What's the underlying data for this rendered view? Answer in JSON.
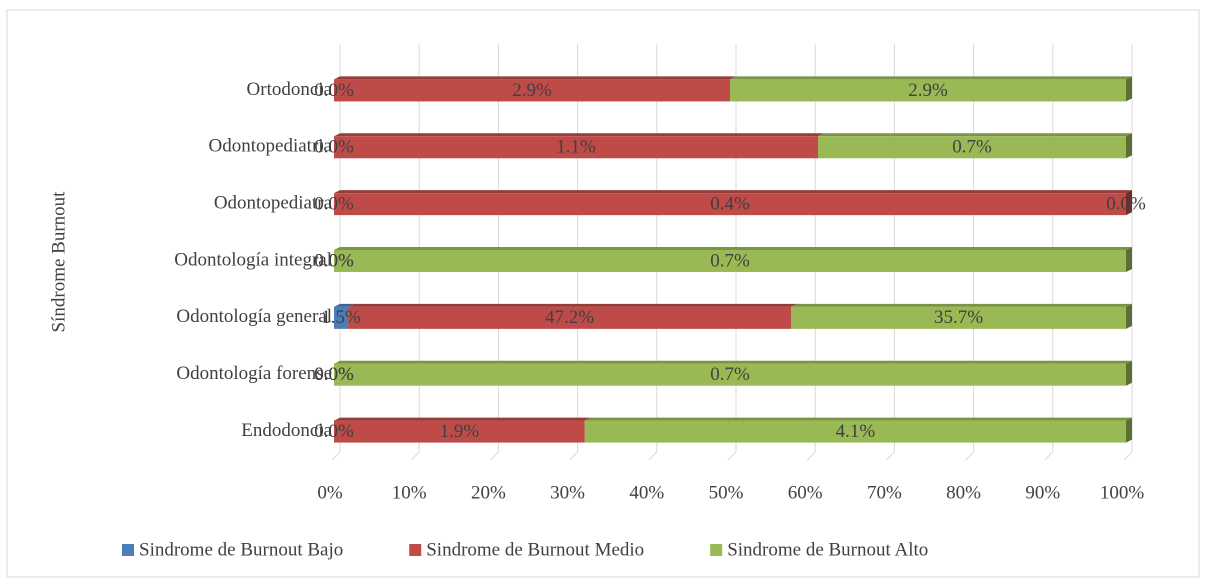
{
  "chart_data": {
    "type": "bar",
    "orientation": "horizontal",
    "stacking": "percent",
    "y_axis_label": "Síndrome Burnout",
    "categories": [
      "Endodoncia",
      "Odontología forense",
      "Odontología general",
      "Odontología integral",
      "Odontopediatra",
      "Odontopediatria",
      "Ortodoncia"
    ],
    "series": [
      {
        "name": "Sindrome de Burnout Bajo",
        "color": "#4a7ebb",
        "values": [
          0,
          0,
          1.5,
          0,
          0,
          0,
          0
        ],
        "value_labels": [
          "0.0%",
          "0.0%",
          "1.5%",
          "0.0%",
          "0.0%",
          "0.0%",
          "0.0%"
        ]
      },
      {
        "name": "Sindrome de Burnout Medio",
        "color": "#be4b48",
        "values": [
          1.9,
          0,
          47.2,
          0,
          0.4,
          1.1,
          2.9
        ],
        "value_labels": [
          "1.9%",
          "0.0%",
          "47.2%",
          "0.0%",
          "0.4%",
          "1.1%",
          "2.9%"
        ]
      },
      {
        "name": "Sindrome de Burnout Alto",
        "color": "#98b954",
        "values": [
          4.1,
          0.7,
          35.7,
          0.7,
          0,
          0.7,
          2.9
        ],
        "value_labels": [
          "4.1%",
          "0.7%",
          "35.7%",
          "0.7%",
          "0.0%",
          "0.7%",
          "2.9%"
        ]
      }
    ],
    "xlim": [
      0,
      100
    ],
    "xticks": [
      {
        "value": 0,
        "label": "0%"
      },
      {
        "value": 10,
        "label": "10%"
      },
      {
        "value": 20,
        "label": "20%"
      },
      {
        "value": 30,
        "label": "30%"
      },
      {
        "value": 40,
        "label": "40%"
      },
      {
        "value": 50,
        "label": "50%"
      },
      {
        "value": 60,
        "label": "60%"
      },
      {
        "value": 70,
        "label": "70%"
      },
      {
        "value": 80,
        "label": "80%"
      },
      {
        "value": 90,
        "label": "90%"
      },
      {
        "value": 100,
        "label": "100%"
      }
    ],
    "grid": true,
    "legend": "bottom"
  }
}
